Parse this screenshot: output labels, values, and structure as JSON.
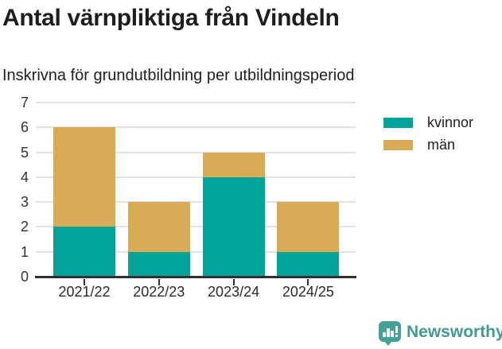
{
  "header": {
    "title": "Antal värnpliktiga från Vindeln",
    "subtitle": "Inskrivna för grundutbildning per utbildningsperiod"
  },
  "chart_data": {
    "type": "bar",
    "stacked": true,
    "title": "Antal värnpliktiga från Vindeln",
    "subtitle": "Inskrivna för grundutbildning per utbildningsperiod",
    "categories": [
      "2021/22",
      "2022/23",
      "2023/24",
      "2024/25"
    ],
    "series": [
      {
        "name": "kvinnor",
        "color": "#00a398",
        "values": [
          2,
          1,
          4,
          1
        ]
      },
      {
        "name": "män",
        "color": "#d8ab57",
        "values": [
          4,
          2,
          1,
          2
        ]
      }
    ],
    "totals": [
      6,
      3,
      5,
      3
    ],
    "xlabel": "",
    "ylabel": "",
    "ylim": [
      0,
      7
    ],
    "ytick_step": 1,
    "grid": true,
    "legend_position": "right"
  },
  "legend": {
    "items": [
      {
        "label": "kvinnor",
        "color": "#00a398"
      },
      {
        "label": "män",
        "color": "#d8ab57"
      }
    ]
  },
  "footer": {
    "brand": "Newsworthy",
    "logo_icon": "bar-chart-speech-bubble-icon",
    "brand_color": "#449a90"
  }
}
